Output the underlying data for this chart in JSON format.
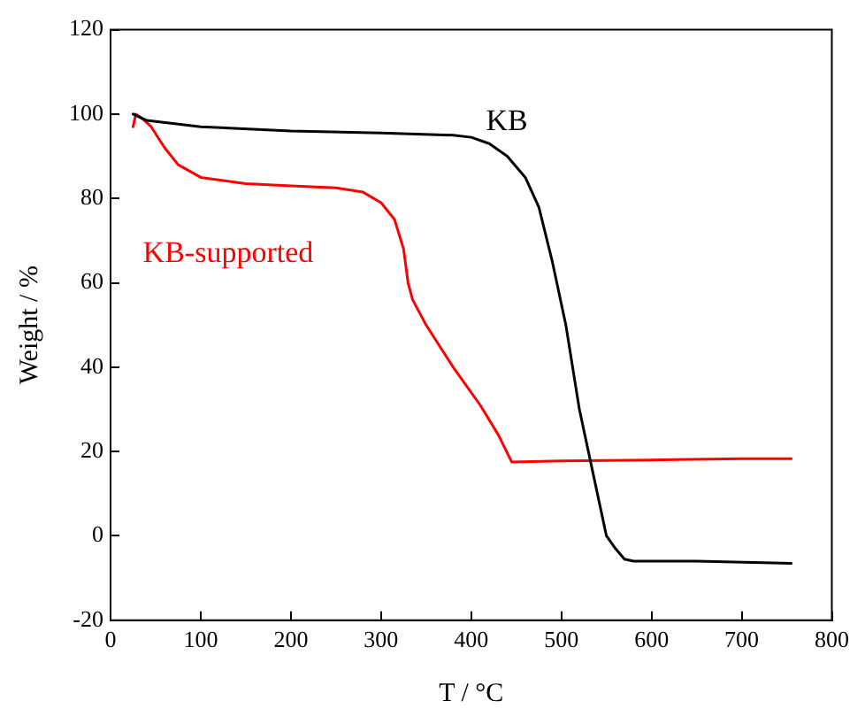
{
  "chart_data": {
    "type": "line",
    "xlabel": "T / °C",
    "ylabel": "Weight / %",
    "xlim": [
      0,
      800
    ],
    "xticks": [
      0,
      100,
      200,
      300,
      400,
      500,
      600,
      700,
      800
    ],
    "ylim": [
      -20,
      120
    ],
    "yticks": [
      -20,
      0,
      20,
      40,
      60,
      80,
      100,
      120
    ],
    "grid": false,
    "legend": false,
    "marker": "none",
    "line_style": "solid",
    "series": [
      {
        "name": "KB",
        "color": "#000000",
        "x": [
          25,
          40,
          100,
          200,
          300,
          380,
          400,
          420,
          440,
          460,
          475,
          490,
          505,
          520,
          530,
          540,
          550,
          560,
          570,
          580,
          650,
          755
        ],
        "values": [
          100,
          98.5,
          97,
          96,
          95.5,
          95,
          94.5,
          93,
          90,
          85,
          78,
          65,
          50,
          30,
          20,
          10,
          0,
          -3,
          -5.5,
          -6,
          -6,
          -6.5
        ]
      },
      {
        "name": "KB-supported",
        "color": "#ff0000",
        "x": [
          25,
          28,
          35,
          45,
          60,
          75,
          100,
          150,
          200,
          250,
          280,
          300,
          315,
          325,
          330,
          335,
          350,
          380,
          410,
          430,
          445,
          500,
          600,
          700,
          755
        ],
        "values": [
          97,
          100,
          99,
          97,
          92,
          88,
          85,
          83.5,
          83,
          82.5,
          81.5,
          79,
          75,
          68,
          60,
          56,
          50,
          40,
          31,
          24,
          17.5,
          17.8,
          18,
          18.3,
          18.3
        ]
      }
    ]
  }
}
